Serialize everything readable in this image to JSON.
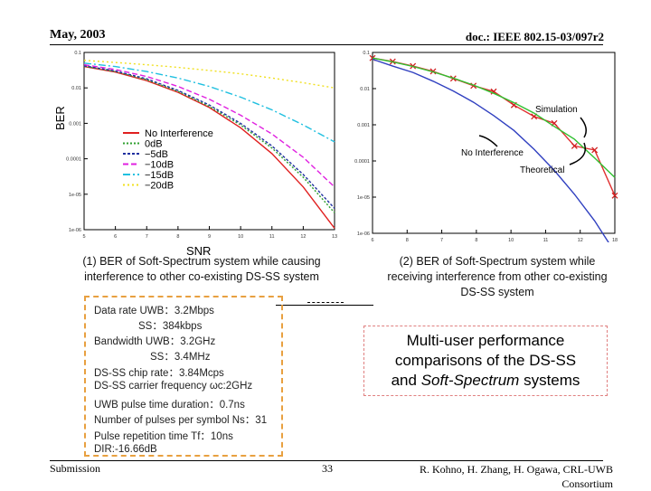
{
  "header": {
    "date": "May, 2003",
    "doc": "doc.: IEEE 802.15-03/097r2"
  },
  "footer": {
    "left": "Submission",
    "page": "33",
    "right_line1": "R. Kohno, H. Zhang, H. Ogawa, CRL-UWB",
    "right_line2": "Consortium"
  },
  "captions": {
    "left_line1": "(1) BER of Soft-Spectrum system while causing",
    "left_line2": "interference to other co-existing  DS-SS system",
    "right_line1": "(2) BER of Soft-Spectrum system while",
    "right_line2": "receiving interference from other co-existing",
    "right_line3": "DS-SS system"
  },
  "params": [
    "Data rate UWB：3.2Mbps",
    "SS：384kbps",
    "Bandwidth UWB：3.2GHz",
    "SS：3.4MHz",
    "DS-SS chip rate：3.84Mcps",
    "DS-SS carrier frequency ωc:2GHz",
    "UWB pulse time duration：0.7ns",
    "Number of pulses per symbol Ns：31",
    "Pulse repetition time Tf：10ns",
    "DIR:-16.66dB"
  ],
  "summary": {
    "line1": "Multi-user performance",
    "line2": "comparisons of the DS-SS",
    "line3_prefix": "and ",
    "line3_italic": "Soft-Spectrum",
    "line3_suffix": " systems"
  },
  "chart_data": [
    {
      "type": "line",
      "title": "",
      "xlabel": "SNR",
      "ylabel": "BER",
      "x": [
        5,
        6,
        7,
        8,
        9,
        10,
        11,
        12,
        13
      ],
      "x_tick_labels": [
        "5",
        "6",
        "7",
        "8",
        "9",
        "10",
        "11",
        "12",
        "13"
      ],
      "y_tick_labels": [
        "0.1",
        "0.01",
        "0.001",
        "0.0001",
        "1e-05",
        "1e-06"
      ],
      "ylim": [
        1e-06,
        0.1
      ],
      "legend": "center",
      "series": [
        {
          "name": "No Interference",
          "color": "#e02020",
          "dash": "",
          "values": [
            0.04,
            0.028,
            0.016,
            0.0075,
            0.0028,
            0.00075,
            0.00014,
            1.6e-05,
            1.1e-06
          ]
        },
        {
          "name": "0dB",
          "color": "#30a030",
          "dash": "2,2",
          "values": [
            0.041,
            0.029,
            0.017,
            0.008,
            0.003,
            0.0009,
            0.0002,
            3e-05,
            3e-06
          ]
        },
        {
          "name": "−5dB",
          "color": "#2030a0",
          "dash": "3,2",
          "values": [
            0.042,
            0.03,
            0.018,
            0.0085,
            0.0033,
            0.001,
            0.00023,
            3.6e-05,
            4e-06
          ]
        },
        {
          "name": "−10dB",
          "color": "#e020e0",
          "dash": "6,3",
          "values": [
            0.045,
            0.033,
            0.021,
            0.011,
            0.0048,
            0.0017,
            0.0005,
            0.00011,
            1.6e-05
          ]
        },
        {
          "name": "−15dB",
          "color": "#20c0e0",
          "dash": "8,3,2,3",
          "values": [
            0.05,
            0.04,
            0.029,
            0.019,
            0.011,
            0.0055,
            0.0024,
            0.0009,
            0.0003
          ]
        },
        {
          "name": "−20dB",
          "color": "#f0e020",
          "dash": "2,3",
          "values": [
            0.06,
            0.052,
            0.045,
            0.038,
            0.031,
            0.025,
            0.019,
            0.014,
            0.01
          ]
        }
      ]
    },
    {
      "type": "line",
      "title": "",
      "xlabel": "",
      "ylabel": "",
      "x": [
        6,
        7,
        8,
        9,
        10,
        11,
        12,
        13,
        14,
        15,
        16,
        17,
        18
      ],
      "x_tick_labels": [
        "6",
        "8",
        "7",
        "8",
        "10",
        "11",
        "12",
        "18"
      ],
      "y_tick_labels": [
        "0.1",
        "0.01",
        "0.001",
        "0.0001",
        "1e-05",
        "1e-06"
      ],
      "ylim": [
        1e-06,
        0.1
      ],
      "annotations": [
        "Simulation",
        "No Interference",
        "Theoretical"
      ],
      "series": [
        {
          "name": "Simulation",
          "color": "#e03030",
          "dash": "",
          "markers": true,
          "values": [
            0.07,
            0.056,
            0.042,
            0.03,
            0.019,
            0.012,
            0.0083,
            0.0035,
            0.0017,
            0.0011,
            0.00026,
            0.0002,
            1.1e-05
          ]
        },
        {
          "name": "Theoretical",
          "color": "#30c030",
          "dash": "",
          "values": [
            0.07,
            0.055,
            0.041,
            0.029,
            0.0195,
            0.0125,
            0.0074,
            0.0041,
            0.0021,
            0.0009,
            0.0004,
            0.00012,
            3.5e-05
          ]
        },
        {
          "name": "No Interference",
          "color": "#3040c0",
          "dash": "",
          "values": [
            0.065,
            0.042,
            0.028,
            0.016,
            0.0086,
            0.0042,
            0.0018,
            0.0007,
            0.00021,
            5.5e-05,
            1.2e-05,
            2.2e-06,
            3e-07
          ]
        }
      ]
    }
  ]
}
